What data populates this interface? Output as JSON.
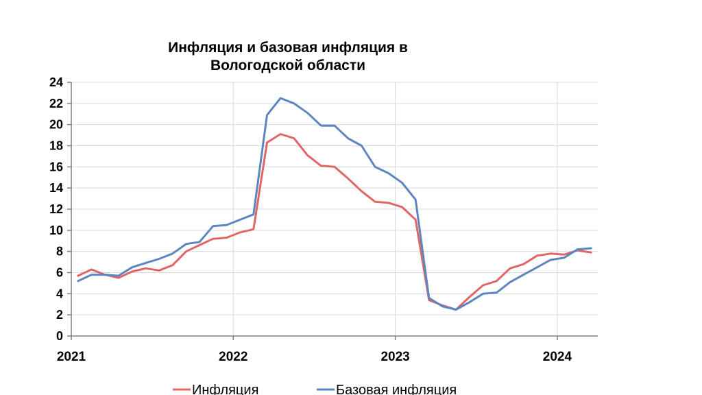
{
  "chart_data": {
    "type": "line",
    "title_lines": [
      "Инфляция и базовая инфляция в",
      "Вологодской области"
    ],
    "xlabel": "",
    "ylabel": "",
    "ylim": [
      0,
      24
    ],
    "yticks": [
      0,
      2,
      4,
      6,
      8,
      10,
      12,
      14,
      16,
      18,
      20,
      22,
      24
    ],
    "xlim": [
      0,
      39
    ],
    "xticks": [
      {
        "x": 0,
        "label": "2021"
      },
      {
        "x": 12,
        "label": "2022"
      },
      {
        "x": 24,
        "label": "2023"
      },
      {
        "x": 36,
        "label": "2024"
      }
    ],
    "grid": {
      "vertical": true,
      "horizontal": true
    },
    "legend_position": "bottom",
    "x": [
      0.5,
      1.5,
      2.5,
      3.5,
      4.5,
      5.5,
      6.5,
      7.5,
      8.5,
      9.5,
      10.5,
      11.5,
      12.5,
      13.5,
      14.5,
      15.5,
      16.5,
      17.5,
      18.5,
      19.5,
      20.5,
      21.5,
      22.5,
      23.5,
      24.5,
      25.5,
      26.5,
      27.5,
      28.5,
      29.5,
      30.5,
      31.5,
      32.5,
      33.5,
      34.5,
      35.5,
      36.5,
      37.5,
      38.5
    ],
    "series": [
      {
        "name": "Инфляция",
        "color": "#e06666",
        "values": [
          5.7,
          6.3,
          5.8,
          5.5,
          6.1,
          6.4,
          6.2,
          6.7,
          8.0,
          8.6,
          9.2,
          9.3,
          9.8,
          10.1,
          18.3,
          19.1,
          18.7,
          17.1,
          16.1,
          16.0,
          14.9,
          13.7,
          12.7,
          12.6,
          12.2,
          11.0,
          3.4,
          2.9,
          2.5,
          3.7,
          4.8,
          5.2,
          6.4,
          6.8,
          7.6,
          7.8,
          7.7,
          8.1,
          7.9
        ]
      },
      {
        "name": "Базовая инфляция",
        "color": "#5b86c0",
        "values": [
          5.2,
          5.8,
          5.8,
          5.7,
          6.5,
          6.9,
          7.3,
          7.8,
          8.7,
          8.9,
          10.4,
          10.5,
          11.0,
          11.5,
          20.9,
          22.5,
          22.0,
          21.1,
          19.9,
          19.9,
          18.7,
          18.0,
          16.0,
          15.4,
          14.5,
          12.9,
          3.6,
          2.8,
          2.5,
          3.2,
          4.0,
          4.1,
          5.1,
          5.8,
          6.5,
          7.2,
          7.4,
          8.2,
          8.3
        ]
      }
    ]
  }
}
